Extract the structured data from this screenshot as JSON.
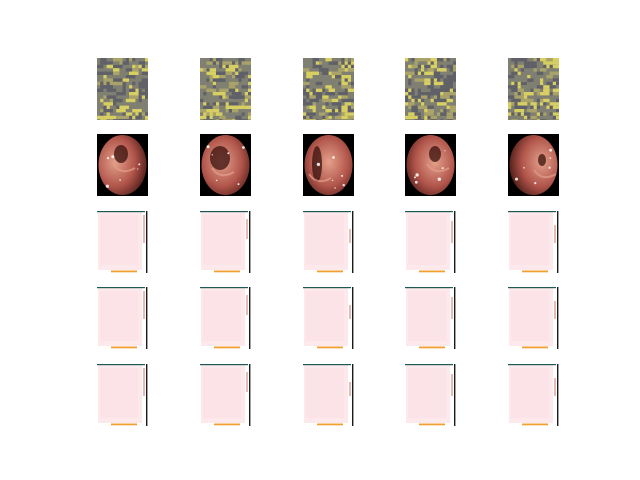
{
  "figure": {
    "background": "#ffffff",
    "columns": 5,
    "rows": [
      {
        "kind": "noise-latent",
        "colors": {
          "base": "#7f7f72",
          "dark": "#5f6068",
          "bright": "#d8cf62",
          "mid": "#a9a36a"
        }
      },
      {
        "kind": "endoscopy-frame",
        "colors": {
          "border": "#000000",
          "tissue": "#b0544a",
          "tissue_light": "#e3a08a",
          "lumen": "#3a120e",
          "specular": "#ffffff"
        }
      },
      {
        "kind": "generated-pink",
        "colors": {
          "fill": "#fde8ec",
          "edge_dark": "#1a1a1a",
          "edge_teal": "#1e5a55",
          "accent_red": "#c0392b",
          "bottom_orange": "#f0a030"
        }
      },
      {
        "kind": "generated-pink",
        "colors": {
          "fill": "#fde8ec",
          "edge_dark": "#1a1a1a",
          "edge_teal": "#1e5a55",
          "accent_red": "#c0392b",
          "bottom_orange": "#f0a030"
        }
      },
      {
        "kind": "generated-pink",
        "colors": {
          "fill": "#fde8ec",
          "edge_dark": "#1a1a1a",
          "edge_teal": "#1e5a55",
          "accent_red": "#c0392b",
          "bottom_orange": "#f0a030"
        }
      }
    ]
  }
}
